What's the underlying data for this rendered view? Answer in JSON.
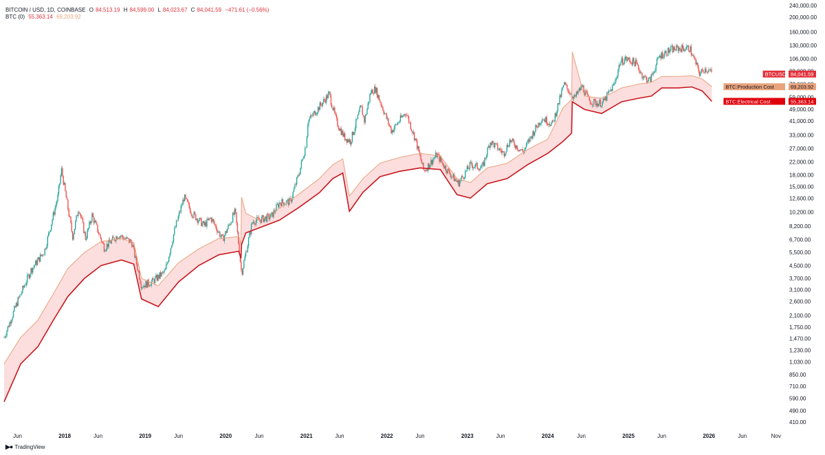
{
  "header": {
    "symbol": "BITCOIN / USD, 1D, COINBASE",
    "o_label": "O",
    "o_value": "84,513.19",
    "h_label": "H",
    "h_value": "84,599.00",
    "l_label": "L",
    "l_value": "84,023.67",
    "c_label": "C",
    "c_value": "84,041.59",
    "change": "−471.61 (−0.56%)",
    "indicator_name": "BTC (0)",
    "indicator_v1": "55,363.14",
    "indicator_v2": "69,203.92"
  },
  "footer": {
    "brand": "TradingView"
  },
  "colors": {
    "price_up": "#26a69a",
    "price_down": "#ef5350",
    "production": "#e8a27c",
    "electrical": "#c8161d",
    "band_fill": "#fcdede",
    "axis_text": "#131722"
  },
  "chart_data": {
    "type": "line",
    "scale": "log",
    "ylim": [
      370,
      250000
    ],
    "y_ticks": [
      "410.00",
      "490.00",
      "590.00",
      "710.00",
      "850.00",
      "1,030.00",
      "1,230.00",
      "1,470.00",
      "1,750.00",
      "2,100.00",
      "2,600.00",
      "3,100.00",
      "3,700.00",
      "4,500.00",
      "5,500.00",
      "6,700.00",
      "8,200.00",
      "10,200.00",
      "12,600.00",
      "15,000.00",
      "18,000.00",
      "22,000.00",
      "27,000.00",
      "33,000.00",
      "41,000.00",
      "49,000.00",
      "59,000.00",
      "72,000.00",
      "88,000.00",
      "106,000.00",
      "130,000.00",
      "160,000.00",
      "200,000.00",
      "240,000.00"
    ],
    "x_ticks": [
      "Jun",
      "2018",
      "Jun",
      "2019",
      "Jun",
      "2020",
      "Jun",
      "2021",
      "Jun",
      "2022",
      "Jun",
      "2023",
      "Jun",
      "2024",
      "Jun",
      "2025",
      "Jun",
      "2026",
      "Jun",
      "Nov"
    ],
    "x_tick_dates": [
      "2017-06-01",
      "2018-01-01",
      "2018-06-01",
      "2019-01-01",
      "2019-06-01",
      "2020-01-01",
      "2020-06-01",
      "2021-01-01",
      "2021-06-01",
      "2022-01-01",
      "2022-06-01",
      "2023-01-01",
      "2023-06-01",
      "2024-01-01",
      "2024-06-01",
      "2025-01-01",
      "2025-06-01",
      "2026-01-01",
      "2026-06-01",
      "2026-11-01"
    ],
    "series": [
      {
        "name": "BTCUSD",
        "label_value": "84,041.59",
        "dates": [
          "2017-04-01",
          "2017-06-01",
          "2017-08-01",
          "2017-10-01",
          "2017-12-01",
          "2017-12-17",
          "2018-02-06",
          "2018-03-05",
          "2018-04-06",
          "2018-05-05",
          "2018-06-29",
          "2018-09-01",
          "2018-11-01",
          "2018-12-15",
          "2019-02-01",
          "2019-04-01",
          "2019-05-15",
          "2019-06-26",
          "2019-08-01",
          "2019-09-25",
          "2019-10-26",
          "2019-12-18",
          "2020-02-13",
          "2020-03-13",
          "2020-05-01",
          "2020-07-25",
          "2020-09-01",
          "2020-10-20",
          "2020-12-01",
          "2020-12-31",
          "2021-01-08",
          "2021-02-15",
          "2021-04-14",
          "2021-05-19",
          "2021-06-22",
          "2021-07-20",
          "2021-09-06",
          "2021-09-21",
          "2021-10-20",
          "2021-11-10",
          "2022-01-22",
          "2022-03-28",
          "2022-05-10",
          "2022-06-18",
          "2022-08-15",
          "2022-09-30",
          "2022-11-21",
          "2023-01-15",
          "2023-03-10",
          "2023-04-14",
          "2023-06-15",
          "2023-07-13",
          "2023-09-11",
          "2023-10-25",
          "2023-12-05",
          "2024-01-23",
          "2024-03-14",
          "2024-05-01",
          "2024-06-05",
          "2024-07-05",
          "2024-08-05",
          "2024-09-06",
          "2024-10-29",
          "2024-11-22",
          "2024-12-17",
          "2025-02-01",
          "2025-03-10",
          "2025-04-08",
          "2025-05-22",
          "2025-07-14",
          "2025-08-14",
          "2025-10-06",
          "2025-10-20",
          "2025-11-21",
          "2025-12-10",
          "2026-01-02",
          "2026-01-14"
        ],
        "values": [
          1500,
          2600,
          4200,
          5600,
          13000,
          19500,
          7000,
          11000,
          6800,
          9700,
          5900,
          7200,
          6400,
          3300,
          3500,
          4100,
          7800,
          12800,
          10000,
          8300,
          9300,
          6700,
          10300,
          4000,
          8800,
          9500,
          11800,
          11900,
          19000,
          29000,
          41000,
          48000,
          62000,
          40000,
          32000,
          30000,
          51000,
          41000,
          64000,
          67000,
          35000,
          47000,
          31000,
          19000,
          24500,
          19400,
          15800,
          21000,
          20000,
          30000,
          25000,
          30500,
          25500,
          34000,
          43000,
          39000,
          72000,
          58000,
          70000,
          56000,
          54000,
          54000,
          72000,
          99000,
          106000,
          100000,
          80000,
          76000,
          111000,
          122000,
          124000,
          125000,
          110000,
          84000,
          91000,
          89000,
          84041
        ]
      },
      {
        "name": "BTC:Production Cost",
        "label_value": "69,203.92",
        "dates": [
          "2017-04-01",
          "2017-06-15",
          "2017-09-01",
          "2017-11-15",
          "2018-01-15",
          "2018-04-01",
          "2018-06-15",
          "2018-09-15",
          "2018-11-10",
          "2018-12-15",
          "2019-03-01",
          "2019-06-01",
          "2019-09-01",
          "2019-12-01",
          "2020-03-01",
          "2020-03-10",
          "2020-03-13",
          "2020-04-01",
          "2020-06-01",
          "2020-09-01",
          "2020-12-01",
          "2021-03-01",
          "2021-05-01",
          "2021-06-15",
          "2021-07-15",
          "2021-09-15",
          "2021-12-01",
          "2022-03-01",
          "2022-06-01",
          "2022-09-01",
          "2022-11-15",
          "2023-01-15",
          "2023-04-01",
          "2023-07-01",
          "2023-10-01",
          "2024-01-01",
          "2024-03-10",
          "2024-04-18",
          "2024-04-21",
          "2024-06-15",
          "2024-09-01",
          "2024-12-01",
          "2025-02-15",
          "2025-04-15",
          "2025-06-01",
          "2025-08-15",
          "2025-10-15",
          "2025-12-01",
          "2026-01-14"
        ],
        "values": [
          1000,
          1500,
          1950,
          3000,
          4300,
          5500,
          6500,
          6800,
          6400,
          3700,
          3300,
          4700,
          5800,
          6800,
          7000,
          6200,
          12800,
          10000,
          9000,
          10800,
          13500,
          17000,
          21000,
          23000,
          13000,
          17000,
          21500,
          23500,
          25000,
          24000,
          17000,
          16000,
          20000,
          21500,
          26500,
          31000,
          50000,
          57000,
          118000,
          60000,
          58000,
          68000,
          72000,
          74000,
          81000,
          81000,
          82000,
          78000,
          69204
        ]
      },
      {
        "name": "BTC:Electrical Cost",
        "label_value": "55,363.14",
        "dates": [
          "2017-04-01",
          "2017-06-15",
          "2017-09-01",
          "2017-11-15",
          "2018-01-15",
          "2018-04-01",
          "2018-06-15",
          "2018-09-15",
          "2018-11-10",
          "2018-12-15",
          "2019-03-01",
          "2019-06-01",
          "2019-09-01",
          "2019-12-01",
          "2020-03-01",
          "2020-03-10",
          "2020-03-13",
          "2020-04-01",
          "2020-06-01",
          "2020-09-01",
          "2020-12-01",
          "2021-03-01",
          "2021-05-01",
          "2021-06-15",
          "2021-07-15",
          "2021-09-15",
          "2021-12-01",
          "2022-03-01",
          "2022-06-01",
          "2022-09-01",
          "2022-11-15",
          "2023-01-15",
          "2023-04-01",
          "2023-07-01",
          "2023-10-01",
          "2024-01-01",
          "2024-03-10",
          "2024-04-18",
          "2024-04-21",
          "2024-06-15",
          "2024-09-01",
          "2024-12-01",
          "2025-02-15",
          "2025-04-15",
          "2025-06-01",
          "2025-08-15",
          "2025-10-15",
          "2025-12-01",
          "2026-01-14"
        ],
        "values": [
          560,
          1000,
          1300,
          2000,
          2800,
          3700,
          4500,
          4900,
          4600,
          2700,
          2400,
          3500,
          4500,
          5300,
          5600,
          5000,
          6200,
          7400,
          8000,
          9000,
          11000,
          13700,
          17000,
          18500,
          10300,
          13800,
          17500,
          19000,
          20000,
          19500,
          13300,
          12600,
          15700,
          17000,
          21000,
          25000,
          30000,
          34000,
          55000,
          49000,
          46000,
          55000,
          58000,
          60000,
          68000,
          68000,
          69000,
          65000,
          55363
        ]
      }
    ]
  }
}
